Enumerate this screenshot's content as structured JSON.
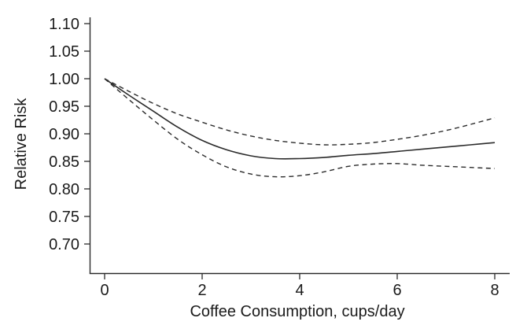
{
  "figure": {
    "background": "#ffffff",
    "line_color": "#2b2b2b",
    "text_color": "#1b1b1b"
  },
  "chart_data": {
    "type": "line",
    "title": "",
    "xlabel": "Coffee Consumption, cups/day",
    "ylabel": "Relative Risk",
    "x_ticks": [
      0,
      2,
      4,
      6,
      8
    ],
    "x_tick_labels": [
      "0",
      "2",
      "4",
      "6",
      "8"
    ],
    "y_ticks": [
      1.1,
      1.05,
      1.0,
      0.95,
      0.9,
      0.85,
      0.8,
      0.75,
      0.7
    ],
    "y_tick_labels": [
      "1.10",
      "1.05",
      "1.00",
      "0.95",
      "0.90",
      "0.85",
      "0.80",
      "0.75",
      "0.70"
    ],
    "xlim": [
      -0.31,
      8.31
    ],
    "ylim": [
      0.647,
      1.111
    ],
    "grid": false,
    "legend": "none",
    "x": [
      0,
      0.5,
      1,
      1.5,
      2,
      2.5,
      3,
      3.5,
      4,
      4.5,
      5,
      5.5,
      6,
      6.5,
      7,
      7.5,
      8
    ],
    "series": [
      {
        "name": "relative-risk-solid-curve",
        "style": "solid",
        "values": [
          1.0,
          0.97,
          0.941,
          0.912,
          0.888,
          0.871,
          0.86,
          0.855,
          0.855,
          0.857,
          0.861,
          0.864,
          0.868,
          0.872,
          0.876,
          0.88,
          0.884
        ]
      },
      {
        "name": "upper-confidence-dashed-curve",
        "style": "dashed",
        "values": [
          1.0,
          0.977,
          0.955,
          0.936,
          0.921,
          0.907,
          0.896,
          0.888,
          0.883,
          0.88,
          0.881,
          0.884,
          0.89,
          0.897,
          0.906,
          0.917,
          0.929
        ]
      },
      {
        "name": "lower-confidence-dashed-curve",
        "style": "dashed",
        "values": [
          1.0,
          0.962,
          0.925,
          0.89,
          0.862,
          0.84,
          0.827,
          0.822,
          0.824,
          0.831,
          0.841,
          0.845,
          0.846,
          0.843,
          0.841,
          0.839,
          0.837
        ]
      }
    ]
  }
}
